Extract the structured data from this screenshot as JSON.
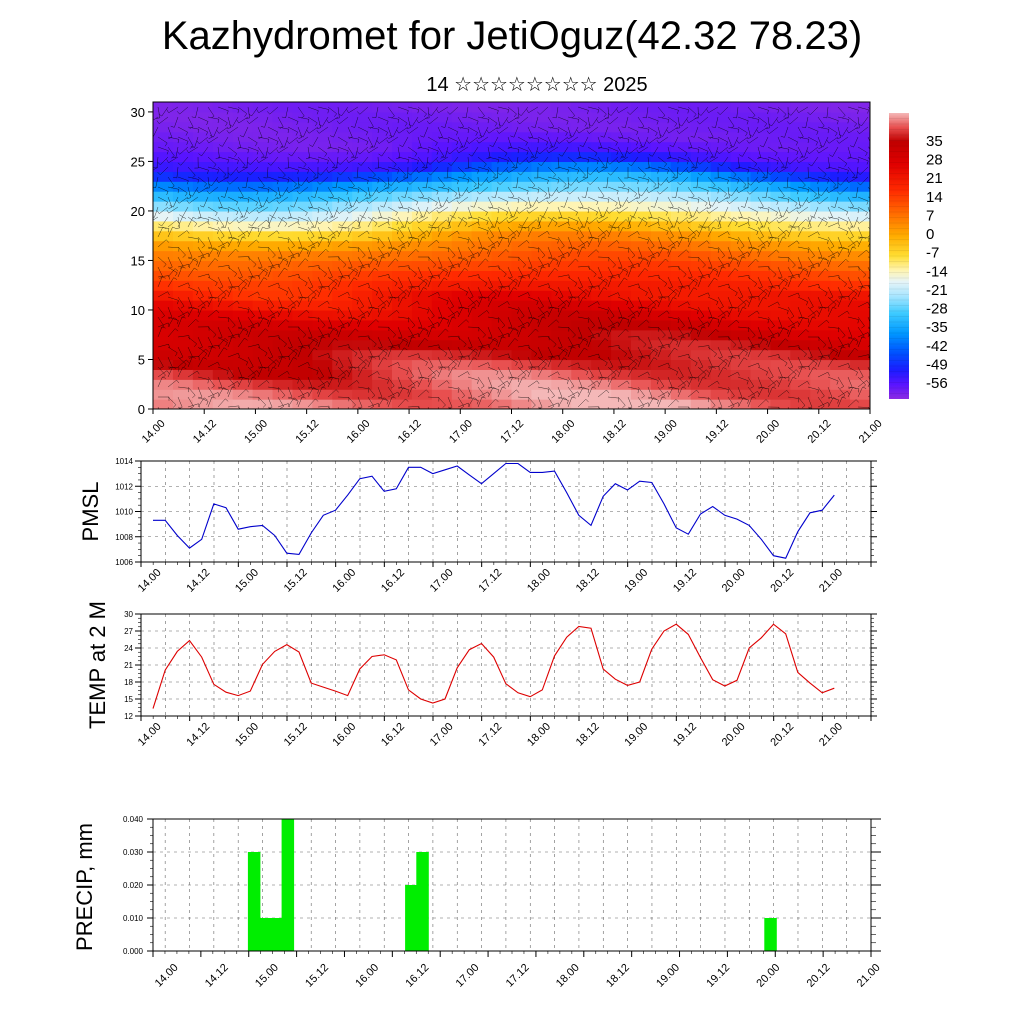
{
  "header": {
    "title": "Kazhydromet for JetiOguz(42.32 78.23)",
    "subtitle": "14 ☆☆☆☆☆☆☆☆ 2025"
  },
  "time_labels": [
    "14.00",
    "14.12",
    "15.00",
    "15.12",
    "16.00",
    "16.12",
    "17.00",
    "17.12",
    "18.00",
    "18.12",
    "19.00",
    "19.12",
    "20.00",
    "20.12",
    "21.00"
  ],
  "chart_data": [
    {
      "type": "heatmap",
      "name_hint": "vertical-section",
      "ylim": [
        0,
        31
      ],
      "yticks": [
        "0",
        "5",
        "10",
        "15",
        "20",
        "25",
        "30"
      ],
      "colorbar": {
        "labels": [
          "35",
          "28",
          "21",
          "14",
          "7",
          "0",
          "-7",
          "-14",
          "-21",
          "-28",
          "-35",
          "-42",
          "-49",
          "-56"
        ],
        "range": [
          -60,
          40
        ]
      },
      "profile": {
        "levels": [
          0,
          3,
          6,
          9,
          12,
          15,
          17,
          19,
          21,
          23,
          24.5,
          25.5,
          27,
          31
        ],
        "values": [
          38,
          35,
          30,
          24,
          16,
          7,
          0,
          -12,
          -24,
          -36,
          -50,
          -54,
          -57,
          -58
        ]
      }
    },
    {
      "type": "line",
      "ylabel": "PMSL",
      "color": "#0000cc",
      "ylim": [
        1006,
        1014
      ],
      "yticks": [
        "1006",
        "1008",
        "1010",
        "1012",
        "1014"
      ],
      "values": [
        1009.3,
        1009.3,
        1008.1,
        1007.1,
        1007.8,
        1010.6,
        1010.3,
        1008.6,
        1008.8,
        1008.9,
        1008.1,
        1006.7,
        1006.6,
        1008.3,
        1009.7,
        1010.1,
        1011.3,
        1012.6,
        1012.8,
        1011.6,
        1011.8,
        1013.5,
        1013.5,
        1013.0,
        1013.3,
        1013.6,
        1012.9,
        1012.2,
        1013.0,
        1013.8,
        1013.8,
        1013.1,
        1013.1,
        1013.2,
        1011.5,
        1009.7,
        1008.9,
        1011.2,
        1012.2,
        1011.7,
        1012.4,
        1012.3,
        1010.6,
        1008.7,
        1008.2,
        1009.8,
        1010.4,
        1009.7,
        1009.4,
        1008.9,
        1007.8,
        1006.5,
        1006.3,
        1008.4,
        1009.9,
        1010.1,
        1011.3
      ]
    },
    {
      "type": "line",
      "ylabel": "TEMP at 2 M",
      "color": "#dd0000",
      "ylim": [
        12,
        30
      ],
      "yticks": [
        "12",
        "15",
        "18",
        "21",
        "24",
        "27",
        "30"
      ],
      "values": [
        13.3,
        20.1,
        23.4,
        25.3,
        22.4,
        17.6,
        16.2,
        15.6,
        16.4,
        21.1,
        23.4,
        24.6,
        23.3,
        17.8,
        17.1,
        16.4,
        15.6,
        20.3,
        22.5,
        22.8,
        21.9,
        16.6,
        15.0,
        14.3,
        15.0,
        20.5,
        23.7,
        24.8,
        22.4,
        17.7,
        16.1,
        15.4,
        16.6,
        22.6,
        25.9,
        27.8,
        27.5,
        20.3,
        18.5,
        17.4,
        18.0,
        23.8,
        27.0,
        28.2,
        26.4,
        22.3,
        18.4,
        17.3,
        18.3,
        24.0,
        25.8,
        28.2,
        26.5,
        19.7,
        17.8,
        16.1,
        16.9
      ]
    },
    {
      "type": "bar",
      "ylabel": "PRECIP, mm",
      "color": "#00ee00",
      "ylim": [
        0,
        0.04
      ],
      "yticks": [
        "0.000",
        "0.010",
        "0.020",
        "0.030",
        "0.040"
      ],
      "values": [
        0,
        0,
        0,
        0,
        0.03,
        0.01,
        0.01,
        0.04,
        0,
        0,
        0,
        0,
        0,
        0,
        0,
        0,
        0,
        0,
        0.02,
        0.03,
        0,
        0,
        0,
        0,
        0,
        0,
        0,
        0,
        0,
        0,
        0,
        0,
        0,
        0,
        0,
        0,
        0,
        0,
        0,
        0,
        0,
        0,
        0,
        0,
        0,
        0,
        0,
        0,
        0,
        0,
        0.01,
        0,
        0,
        0,
        0,
        0
      ]
    }
  ]
}
